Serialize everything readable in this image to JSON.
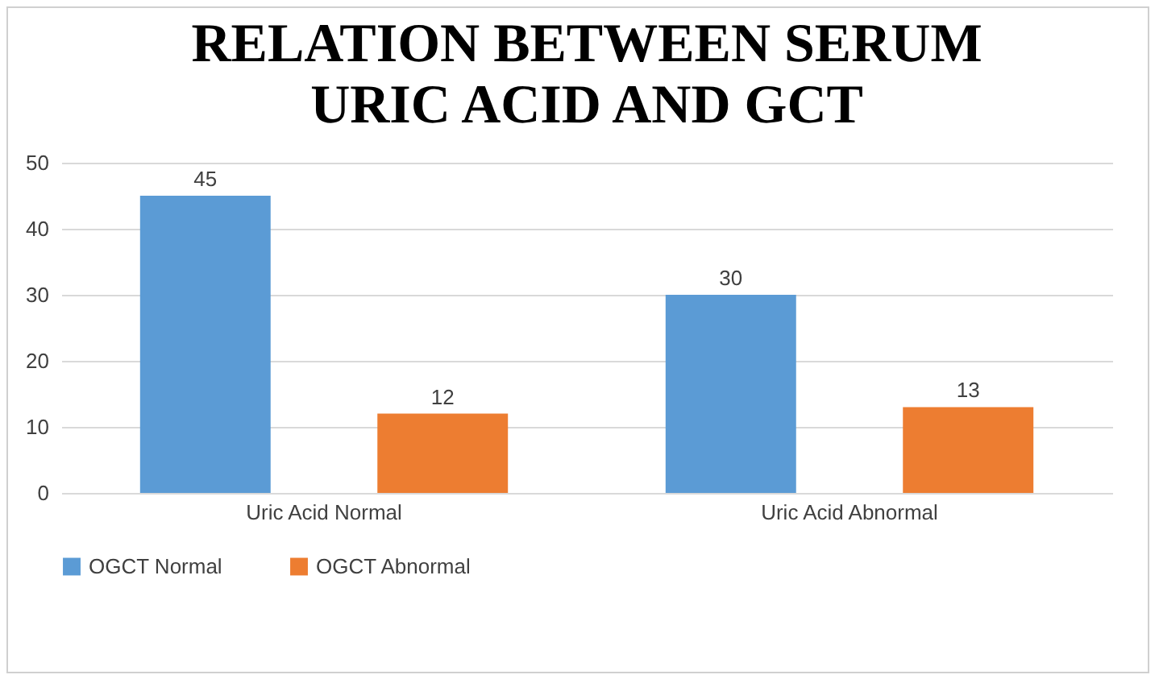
{
  "chart_data": {
    "type": "bar",
    "title": "RELATION BETWEEN SERUM URIC ACID AND GCT",
    "categories": [
      "Uric Acid Normal",
      "Uric Acid Abnormal"
    ],
    "series": [
      {
        "name": "OGCT Normal",
        "color": "#5b9bd5",
        "values": [
          45,
          30
        ]
      },
      {
        "name": "OGCT Abnormal",
        "color": "#ed7d31",
        "values": [
          12,
          13
        ]
      }
    ],
    "ylim": [
      0,
      50
    ],
    "yticks": [
      0,
      10,
      20,
      30,
      40,
      50
    ],
    "grid": "y",
    "legend": "bottom",
    "data_labels": true
  }
}
